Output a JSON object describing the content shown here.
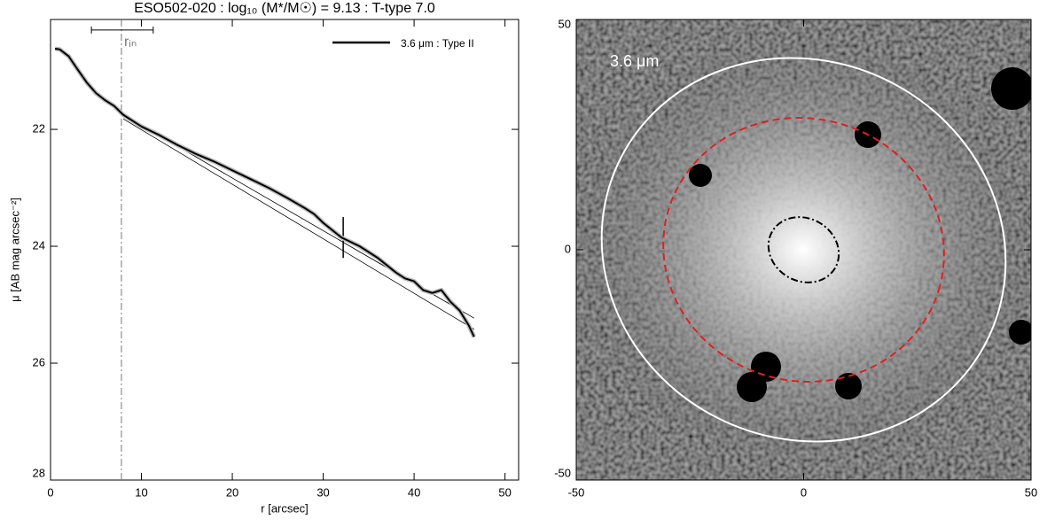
{
  "chart_data": [
    {
      "type": "line",
      "title": "ESO502-020 : log₁₀ (M*/M☉) = 9.13 : T-type 7.0",
      "x_label": "r [arcsec]",
      "y_label": "μ [AB mag arcsec⁻²]",
      "xlim": [
        0,
        51.5
      ],
      "ylim": [
        28,
        20.12
      ],
      "xticks": [
        0,
        10,
        20,
        30,
        40,
        50
      ],
      "yticks": [
        22,
        24,
        26,
        28
      ],
      "legend": "top-right",
      "series": [
        {
          "name": "3.6 μm : Type II",
          "color": "#000000",
          "x": [
            0.5,
            1,
            2,
            3,
            4,
            5,
            6,
            7,
            8,
            10,
            12,
            14,
            16,
            18,
            20,
            22,
            24,
            26,
            28,
            29,
            30,
            32,
            34,
            36,
            38,
            39,
            40,
            41,
            42,
            43,
            44,
            45,
            46,
            46.6
          ],
          "values": [
            20.62,
            20.63,
            20.75,
            20.98,
            21.2,
            21.38,
            21.5,
            21.6,
            21.75,
            21.95,
            22.1,
            22.27,
            22.42,
            22.55,
            22.7,
            22.85,
            23.0,
            23.17,
            23.35,
            23.45,
            23.6,
            23.85,
            24.0,
            24.2,
            24.45,
            24.55,
            24.6,
            24.75,
            24.8,
            24.75,
            24.95,
            25.1,
            25.35,
            25.55
          ]
        }
      ],
      "fit_lines": [
        {
          "color": "#000000",
          "x": [
            8,
            46.6
          ],
          "values": [
            21.75,
            25.23
          ]
        },
        {
          "color": "#000000",
          "x": [
            8,
            46.6
          ],
          "values": [
            21.82,
            25.42
          ]
        }
      ],
      "break": {
        "x": 32.2,
        "values": [
          23.5,
          24.2
        ]
      },
      "r_in": {
        "label": "rᵢₙ",
        "x": 7.8,
        "error": [
          4.5,
          11.3
        ],
        "y": 20.3,
        "color": "#777777"
      }
    },
    {
      "type": "image",
      "label": "3.6 μm",
      "xlim": [
        -50,
        50
      ],
      "ylim": [
        -50,
        50
      ],
      "xticks": [
        -50,
        0,
        50
      ],
      "yticks": [
        -50,
        0,
        50
      ],
      "ellipses": [
        {
          "color": "#ffffff",
          "style": "solid",
          "x": 0,
          "y": 0,
          "a": 45,
          "b": 41,
          "angle": 25
        },
        {
          "color": "#e02020",
          "style": "dashed",
          "x": 0,
          "y": 0,
          "a": 31,
          "b": 28.5,
          "angle": 15
        },
        {
          "color": "#000000",
          "style": "dashdot",
          "x": 0,
          "y": 0,
          "a": 8,
          "b": 6.8,
          "angle": 30
        }
      ]
    }
  ]
}
